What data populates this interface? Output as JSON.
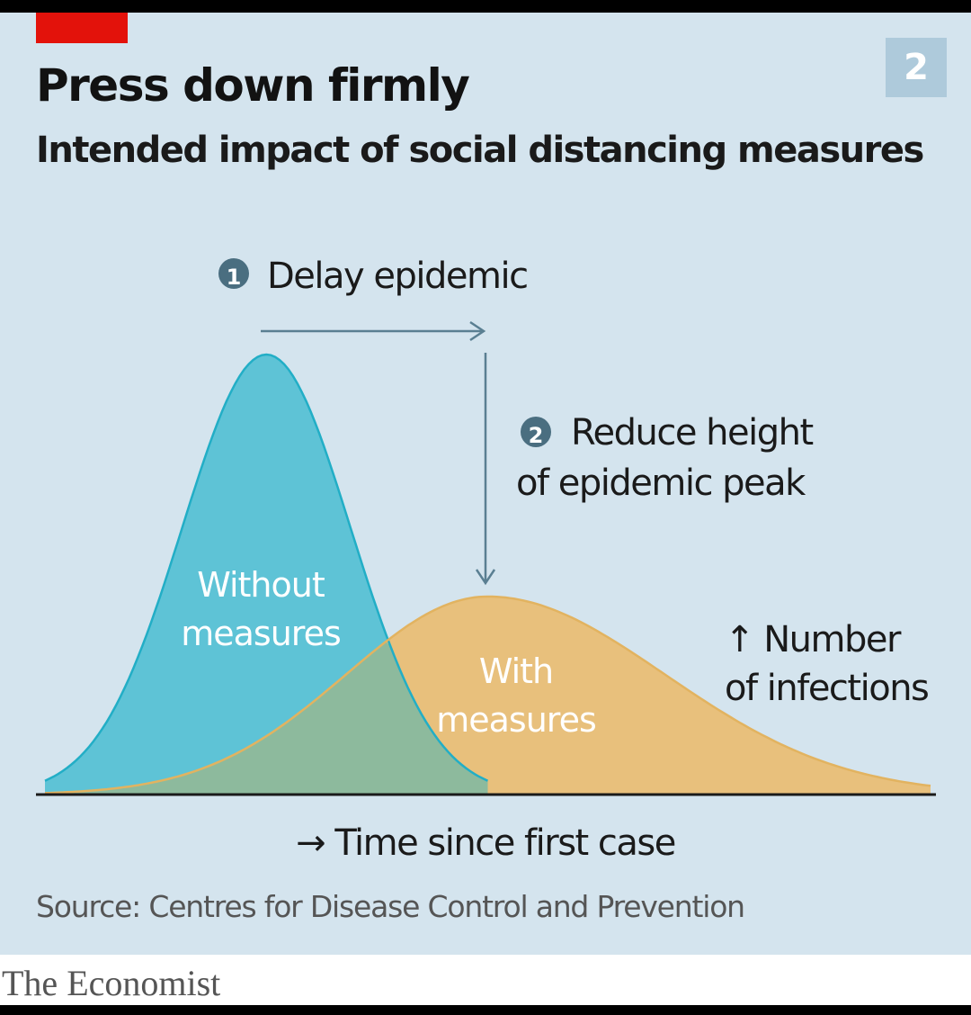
{
  "chart_number": "2",
  "title": "Press down firmly",
  "subtitle": "Intended impact of social distancing measures",
  "chart_data": {
    "type": "area",
    "title": "Press down firmly",
    "subtitle": "Intended impact of social distancing measures",
    "xlabel": "→ Time since first case",
    "ylabel_line1": "↑ Number",
    "ylabel_line2": "of infections",
    "x_ticks": "none",
    "y_ticks": "none",
    "grid": false,
    "series": [
      {
        "label_line1": "Without",
        "label_line2": "measures",
        "color": "#5ec3d6",
        "outline": "#22aec6",
        "peak_x": 25,
        "peak_y": 100,
        "spread": 9.5,
        "x_end": 50
      },
      {
        "label_line1": "With",
        "label_line2": "measures",
        "color": "#e8c07c",
        "outline": "#e2b360",
        "peak_x": 50,
        "peak_y": 45,
        "spread_left": 16,
        "spread_right": 20,
        "x_end": 100
      }
    ],
    "annotations": [
      {
        "number": "1",
        "text_line1": "Delay epidemic",
        "text_line2": ""
      },
      {
        "number": "2",
        "text_line1": "Reduce height",
        "text_line2": "of epidemic peak"
      }
    ]
  },
  "source": "Source: Centres for Disease Control and Prevention",
  "brand": "The Economist"
}
